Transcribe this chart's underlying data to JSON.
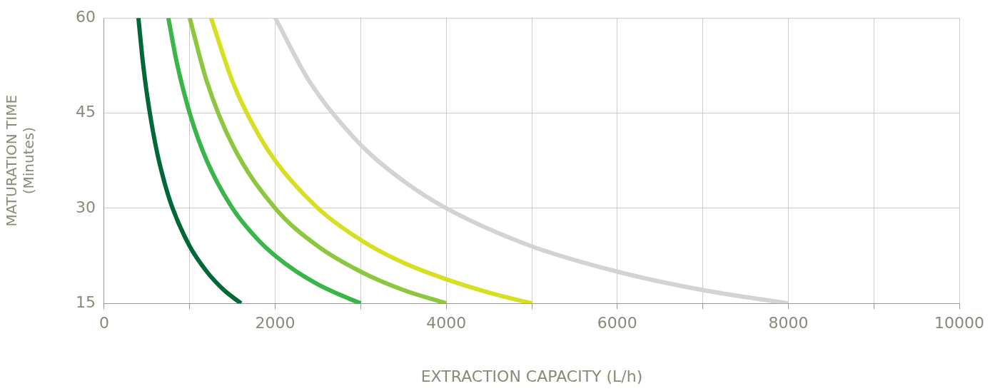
{
  "chart_data": {
    "type": "line",
    "xlabel": "EXTRACTION CAPACITY (L/h)",
    "ylabel": "MATURATION TIME\n(Minutes)",
    "xlim": [
      0,
      10000
    ],
    "xticks": [
      0,
      {
        "value": 1000,
        "label": null
      },
      2000,
      {
        "value": 3000,
        "label": null
      },
      4000,
      {
        "value": 5000,
        "label": null
      },
      6000,
      {
        "value": 7000,
        "label": null
      },
      8000,
      {
        "value": 9000,
        "label": null
      },
      10000
    ],
    "ylim": [
      15,
      60
    ],
    "yticks": [
      15,
      30,
      45,
      60
    ],
    "grid": true,
    "legend": false,
    "marker": "none",
    "line_style": "solid",
    "series": [
      {
        "color": "#006837",
        "x": [
          400,
          450,
          500,
          600,
          700,
          800,
          1000,
          1200,
          1400,
          1600
        ],
        "values": [
          60,
          53.3,
          48,
          40,
          34.3,
          30,
          24,
          20,
          17.1,
          15
        ]
      },
      {
        "color": "#39b54a",
        "x": [
          750,
          850,
          1000,
          1200,
          1500,
          1800,
          2000,
          2250,
          2500,
          2750,
          3000
        ],
        "values": [
          60,
          52.9,
          45,
          37.5,
          30,
          25,
          22.5,
          20,
          18,
          16.4,
          15
        ]
      },
      {
        "color": "#8dc63f",
        "x": [
          1000,
          1200,
          1500,
          2000,
          2500,
          3000,
          3500,
          4000
        ],
        "values": [
          60,
          50,
          40,
          30,
          24,
          20,
          17.1,
          15
        ]
      },
      {
        "color": "#d7df23",
        "x": [
          1250,
          1500,
          1750,
          2000,
          2500,
          3000,
          3500,
          4000,
          4500,
          5000
        ],
        "values": [
          60,
          50,
          42.9,
          37.5,
          30,
          25,
          21.4,
          18.8,
          16.7,
          15
        ]
      },
      {
        "color": "#d1d3d4",
        "x": [
          2000,
          2400,
          3000,
          3500,
          4000,
          5000,
          6000,
          7000,
          8000
        ],
        "values": [
          60,
          50,
          40,
          34.3,
          30,
          24,
          20,
          17.1,
          15
        ]
      }
    ]
  }
}
